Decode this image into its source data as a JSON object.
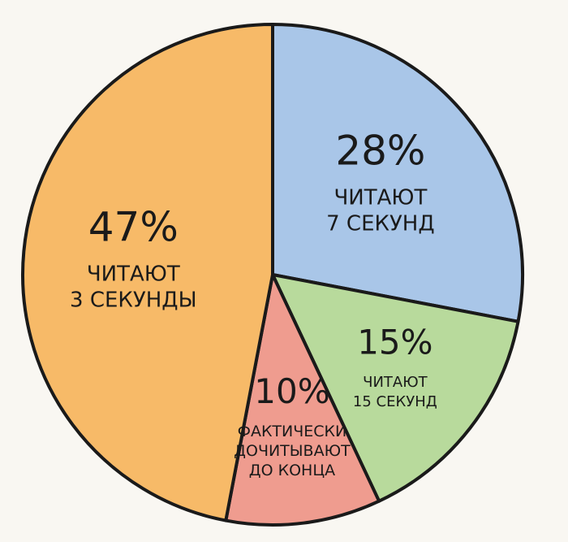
{
  "chart_data": {
    "type": "pie",
    "values": [
      28,
      15,
      10,
      47
    ],
    "value_labels": [
      "28%",
      "15%",
      "10%",
      "47%"
    ],
    "categories": [
      [
        "ЧИТАЮТ",
        "7 СЕКУНД"
      ],
      [
        "ЧИТАЮТ",
        "15 СЕКУНД"
      ],
      [
        "ФАКТИЧЕСКИ",
        "ДОЧИТЫВАЮТ",
        "ДО КОНЦА"
      ],
      [
        "ЧИТАЮТ",
        "3 СЕКУНДЫ"
      ]
    ],
    "colors": [
      "#a9c6e8",
      "#b8da9c",
      "#ef9c8f",
      "#f7ba68"
    ]
  }
}
